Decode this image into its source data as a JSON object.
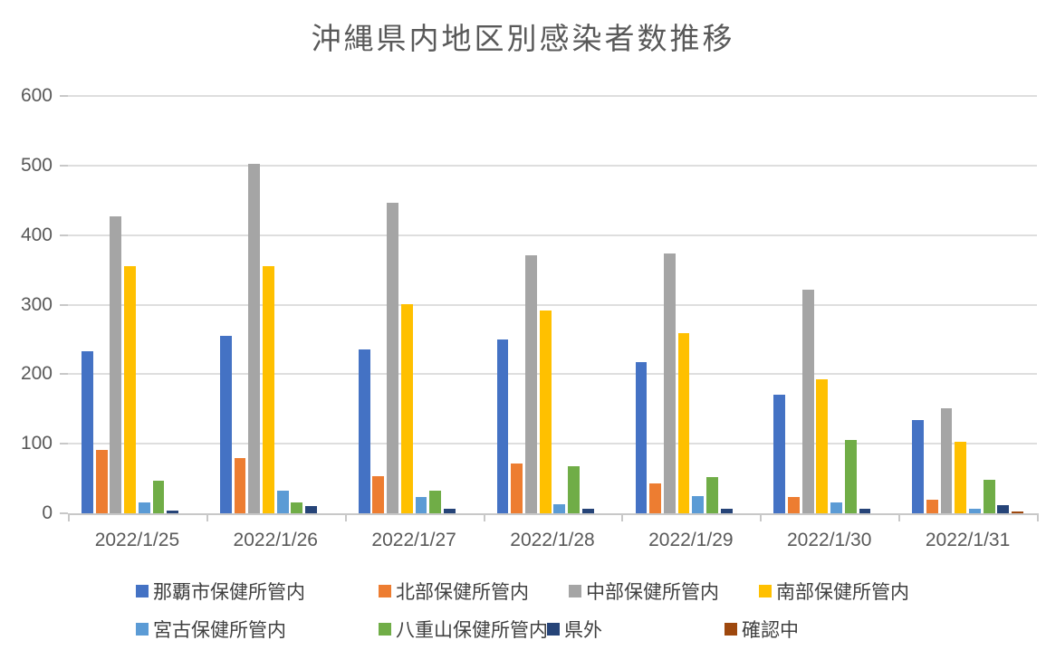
{
  "chart_data": {
    "type": "bar",
    "title": "沖縄県内地区別感染者数推移",
    "categories": [
      "2022/1/25",
      "2022/1/26",
      "2022/1/27",
      "2022/1/28",
      "2022/1/29",
      "2022/1/30",
      "2022/1/31"
    ],
    "series": [
      {
        "name": "那覇市保健所管内",
        "color": "#4472C4",
        "values": [
          233,
          255,
          236,
          250,
          218,
          170,
          134
        ]
      },
      {
        "name": "北部保健所管内",
        "color": "#ED7D31",
        "values": [
          91,
          80,
          53,
          71,
          43,
          23,
          19
        ]
      },
      {
        "name": "中部保健所管内",
        "color": "#A5A5A5",
        "values": [
          427,
          503,
          447,
          371,
          374,
          322,
          151
        ]
      },
      {
        "name": "南部保健所管内",
        "color": "#FFC000",
        "values": [
          355,
          355,
          301,
          291,
          259,
          192,
          103
        ]
      },
      {
        "name": "宮古保健所管内",
        "color": "#5B9BD5",
        "values": [
          15,
          33,
          24,
          13,
          25,
          15,
          6
        ]
      },
      {
        "name": "八重山保健所管内",
        "color": "#70AD47",
        "values": [
          47,
          16,
          32,
          68,
          52,
          106,
          48
        ]
      },
      {
        "name": "県外",
        "color": "#264478",
        "values": [
          4,
          11,
          6,
          7,
          7,
          7,
          12
        ]
      },
      {
        "name": "確認中",
        "color": "#9E480E",
        "values": [
          0,
          0,
          0,
          0,
          0,
          0,
          3
        ]
      }
    ],
    "ylim": [
      0,
      600
    ],
    "ytick_interval": 100,
    "ytick_labels": [
      "0",
      "100",
      "200",
      "300",
      "400",
      "500",
      "600"
    ],
    "grid": true,
    "legend_position": "bottom",
    "legend_rows": [
      [
        0,
        1,
        2,
        3
      ],
      [
        4,
        5,
        6,
        7
      ]
    ]
  },
  "colors": {
    "title_text": "#595959",
    "axis_text": "#595959",
    "legend_text": "#404040",
    "gridline": "#DEDEDE",
    "axis_line": "#C8C8C8",
    "background": "#FFFFFF"
  }
}
